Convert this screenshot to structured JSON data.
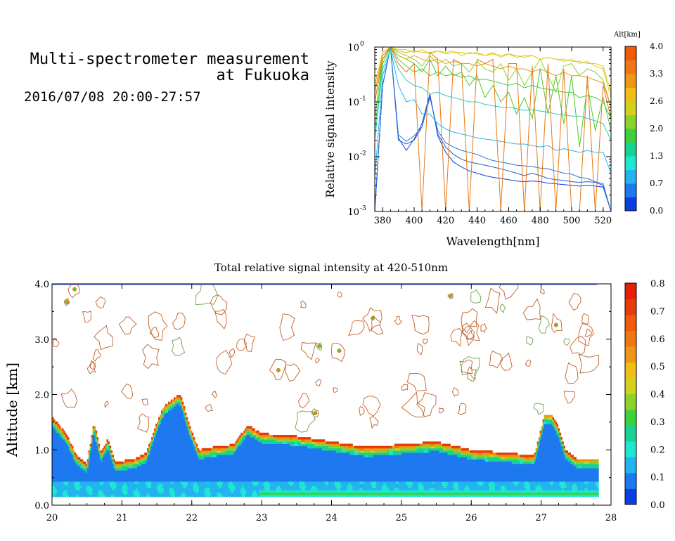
{
  "header": {
    "title_line1": "Multi-spectrometer measurement",
    "title_line2": "at Fukuoka",
    "date_range": "2016/07/08 20:00-27:57"
  },
  "chart_data": [
    {
      "type": "line",
      "title": "",
      "xlabel": "Wavelength[nm]",
      "ylabel": "Relative signal intensity",
      "xlim": [
        375,
        525
      ],
      "ylim": [
        0.001,
        1
      ],
      "yscale": "log",
      "x_ticks": [
        "380",
        "400",
        "420",
        "440",
        "460",
        "480",
        "500",
        "520"
      ],
      "y_ticks": [
        {
          "base": "10",
          "exp": "0"
        },
        {
          "base": "10",
          "exp": "-1"
        },
        {
          "base": "10",
          "exp": "-2"
        },
        {
          "base": "10",
          "exp": "-3"
        }
      ],
      "colorbar": {
        "title": "Alt[km]",
        "ticks": [
          "4.0",
          "3.3",
          "2.6",
          "2.0",
          "1.3",
          "0.7",
          "0.0"
        ],
        "colors": [
          "#0a3fe6",
          "#1e78f0",
          "#23b4f0",
          "#1ee6d2",
          "#19d291",
          "#3cd23c",
          "#8cd228",
          "#d2d21e",
          "#f0be14",
          "#f09614",
          "#f07814",
          "#f05a0a"
        ]
      },
      "x": [
        375,
        380,
        385,
        390,
        395,
        400,
        405,
        410,
        415,
        420,
        425,
        430,
        435,
        440,
        445,
        450,
        455,
        460,
        465,
        470,
        475,
        480,
        485,
        490,
        495,
        500,
        505,
        510,
        515,
        520,
        525
      ],
      "series": [
        {
          "color": "#0a3fe6",
          "values": [
            0.001,
            0.2,
            1,
            0.022,
            0.013,
            0.021,
            0.04,
            0.14,
            0.024,
            0.012,
            0.008,
            0.0065,
            0.0055,
            0.005,
            0.0045,
            0.0042,
            0.004,
            0.0038,
            0.0036,
            0.0035,
            0.0036,
            0.0035,
            0.0033,
            0.0032,
            0.0031,
            0.003,
            0.0029,
            0.003,
            0.0029,
            0.0028,
            0.001
          ]
        },
        {
          "color": "#1e5fd0",
          "values": [
            0.001,
            0.2,
            1,
            0.02,
            0.017,
            0.02,
            0.035,
            0.13,
            0.026,
            0.015,
            0.011,
            0.009,
            0.008,
            0.0075,
            0.007,
            0.0065,
            0.006,
            0.0055,
            0.005,
            0.0045,
            0.005,
            0.0045,
            0.004,
            0.0038,
            0.0037,
            0.0035,
            0.0034,
            0.0035,
            0.0034,
            0.003,
            0.001
          ]
        },
        {
          "color": "#2a70d8",
          "values": [
            0.001,
            0.2,
            1,
            0.025,
            0.019,
            0.024,
            0.035,
            0.12,
            0.03,
            0.018,
            0.015,
            0.013,
            0.012,
            0.011,
            0.0095,
            0.0085,
            0.008,
            0.0075,
            0.007,
            0.0068,
            0.0066,
            0.0062,
            0.006,
            0.0055,
            0.005,
            0.0048,
            0.0042,
            0.004,
            0.0035,
            0.0032,
            0.001
          ]
        },
        {
          "color": "#23b4f0",
          "values": [
            0.004,
            0.3,
            0.9,
            0.2,
            0.1,
            0.11,
            0.06,
            0.06,
            0.04,
            0.032,
            0.028,
            0.026,
            0.024,
            0.022,
            0.021,
            0.02,
            0.019,
            0.018,
            0.017,
            0.017,
            0.016,
            0.015,
            0.016,
            0.013,
            0.014,
            0.013,
            0.012,
            0.013,
            0.012,
            0.012,
            0.005
          ]
        },
        {
          "color": "#1ed2c0",
          "values": [
            0.02,
            0.4,
            0.9,
            0.4,
            0.25,
            0.2,
            0.18,
            0.14,
            0.15,
            0.13,
            0.12,
            0.11,
            0.1,
            0.1,
            0.09,
            0.085,
            0.08,
            0.08,
            0.075,
            0.07,
            0.072,
            0.068,
            0.065,
            0.06,
            0.058,
            0.055,
            0.055,
            0.05,
            0.045,
            0.04,
            0.02
          ]
        },
        {
          "color": "#3cd23c",
          "values": [
            0.03,
            0.5,
            1,
            0.6,
            0.45,
            0.35,
            0.4,
            0.3,
            0.35,
            0.3,
            0.32,
            0.28,
            0.3,
            0.25,
            0.26,
            0.24,
            0.22,
            0.2,
            0.22,
            0.18,
            0.2,
            0.18,
            0.17,
            0.16,
            0.15,
            0.15,
            0.12,
            0.13,
            0.12,
            0.1,
            0.05
          ]
        },
        {
          "color": "#50c828",
          "values": [
            0.05,
            0.6,
            1,
            0.7,
            0.6,
            0.5,
            0.35,
            0.6,
            0.3,
            0.45,
            0.3,
            0.35,
            0.2,
            0.3,
            0.12,
            0.2,
            0.1,
            0.15,
            0.06,
            0.12,
            0.05,
            0.4,
            0.06,
            0.3,
            0.04,
            0.3,
            0.015,
            0.2,
            0.03,
            0.12,
            0.03
          ]
        },
        {
          "color": "#8cd228",
          "values": [
            0.1,
            0.7,
            1,
            0.8,
            0.7,
            0.6,
            0.45,
            0.7,
            0.5,
            0.6,
            0.45,
            0.5,
            0.35,
            0.55,
            0.4,
            0.35,
            0.5,
            0.25,
            0.4,
            0.2,
            0.35,
            0.6,
            0.3,
            0.15,
            0.45,
            0.5,
            0.3,
            0.4,
            0.35,
            0.25,
            0.08
          ]
        },
        {
          "color": "#d2d21e",
          "values": [
            0.15,
            0.8,
            1,
            0.9,
            0.9,
            0.8,
            0.9,
            0.75,
            0.85,
            0.8,
            0.85,
            0.7,
            0.8,
            0.75,
            0.7,
            0.8,
            0.65,
            0.75,
            0.7,
            0.65,
            0.7,
            0.6,
            0.65,
            0.6,
            0.55,
            0.6,
            0.5,
            0.55,
            0.45,
            0.4,
            0.12
          ]
        },
        {
          "color": "#f0be14",
          "values": [
            0.2,
            0.8,
            1,
            0.85,
            0.8,
            0.85,
            0.8,
            0.8,
            0.85,
            0.75,
            0.8,
            0.8,
            0.75,
            0.8,
            0.7,
            0.75,
            0.7,
            0.75,
            0.65,
            0.7,
            0.7,
            0.6,
            0.65,
            0.6,
            0.6,
            0.55,
            0.55,
            0.5,
            0.5,
            0.45,
            0.15
          ]
        },
        {
          "color": "#f09614",
          "values": [
            0.15,
            0.7,
            1,
            0.7,
            0.6,
            0.7,
            0.6,
            0.55,
            0.6,
            0.5,
            0.55,
            0.5,
            0.5,
            0.45,
            0.5,
            0.45,
            0.4,
            0.45,
            0.4,
            0.4,
            0.35,
            0.4,
            0.35,
            0.3,
            0.35,
            0.3,
            0.3,
            0.28,
            0.25,
            0.22,
            0.08
          ]
        },
        {
          "color": "#e67814",
          "values": [
            0.1,
            0.6,
            1,
            0.5,
            0.35,
            0.5,
            0.001,
            0.8,
            0.6,
            0.001,
            0.6,
            0.5,
            0.001,
            0.6,
            0.5,
            0.6,
            0.001,
            0.5,
            0.5,
            0.001,
            0.45,
            0.001,
            0.5,
            0.001,
            0.4,
            0.001,
            0.001,
            0.3,
            0.001,
            0.2,
            0.05
          ]
        }
      ]
    },
    {
      "type": "heatmap",
      "title": "Total relative signal intensity at 420-510nm",
      "xlabel": "",
      "ylabel": "Altitude [km]",
      "xlim": [
        20,
        28
      ],
      "ylim": [
        0,
        4
      ],
      "x_ticks": [
        "20",
        "21",
        "22",
        "23",
        "24",
        "25",
        "26",
        "27",
        "28"
      ],
      "y_ticks": [
        "0.0",
        "1.0",
        "2.0",
        "3.0",
        "4.0"
      ],
      "colorbar": {
        "ticks": [
          "0.8",
          "0.7",
          "0.6",
          "0.5",
          "0.4",
          "0.3",
          "0.2",
          "0.1",
          "0.0"
        ],
        "colors": [
          "#0a3fe6",
          "#1e78f0",
          "#23b4f0",
          "#1ee6d2",
          "#19d291",
          "#3cd23c",
          "#8cd228",
          "#d2d21e",
          "#f0be14",
          "#f09614",
          "#f07814",
          "#f05a0a",
          "#e63c0a",
          "#e61e0a"
        ]
      },
      "cloud_layer_top_km": {
        "x": [
          20.0,
          20.2,
          20.35,
          20.5,
          20.6,
          20.7,
          20.8,
          20.9,
          21.0,
          21.2,
          21.35,
          21.5,
          21.6,
          21.8,
          21.85,
          21.95,
          22.1,
          22.3,
          22.6,
          22.8,
          23.0,
          23.5,
          24.0,
          24.5,
          25.0,
          25.5,
          26.0,
          26.5,
          26.9,
          27.05,
          27.15,
          27.25,
          27.35,
          27.5,
          27.8
        ],
        "values": [
          1.6,
          1.3,
          0.9,
          0.75,
          1.5,
          0.95,
          1.2,
          0.8,
          0.8,
          0.85,
          0.95,
          1.5,
          1.8,
          2.0,
          1.95,
          1.5,
          1.0,
          1.05,
          1.1,
          1.45,
          1.3,
          1.25,
          1.15,
          1.05,
          1.1,
          1.15,
          1.0,
          0.95,
          0.9,
          1.65,
          1.65,
          1.4,
          1.0,
          0.85,
          0.85
        ]
      }
    }
  ]
}
